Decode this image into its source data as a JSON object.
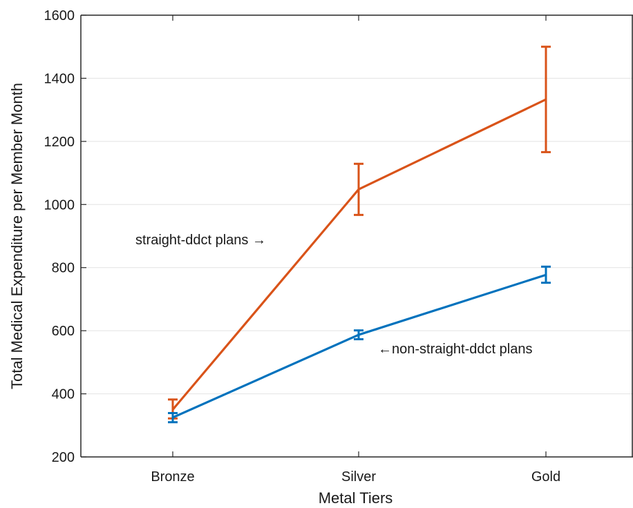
{
  "chart_data": {
    "type": "line",
    "title": "",
    "xlabel": "Metal Tiers",
    "ylabel": "Total Medical Expenditure per Member Month",
    "categories": [
      "Bronze",
      "Silver",
      "Gold"
    ],
    "ylim": [
      200,
      1600
    ],
    "yticks": [
      200,
      400,
      600,
      800,
      1000,
      1200,
      1400,
      1600
    ],
    "grid": "horizontal",
    "legend": "none",
    "series": [
      {
        "color": "#D95319",
        "values": [
          350,
          1048,
          1333
        ],
        "error_low": [
          322,
          967,
          1166
        ],
        "error_high": [
          382,
          1129,
          1500
        ]
      },
      {
        "color": "#0072BD",
        "values": [
          325,
          587,
          777
        ],
        "error_low": [
          310,
          573,
          752
        ],
        "error_high": [
          339,
          601,
          803
        ]
      }
    ],
    "annotations": [
      {
        "text": "straight-ddct plans →",
        "series_index": 0
      },
      {
        "text": "←non-straight-ddct plans",
        "series_index": 1
      }
    ]
  }
}
